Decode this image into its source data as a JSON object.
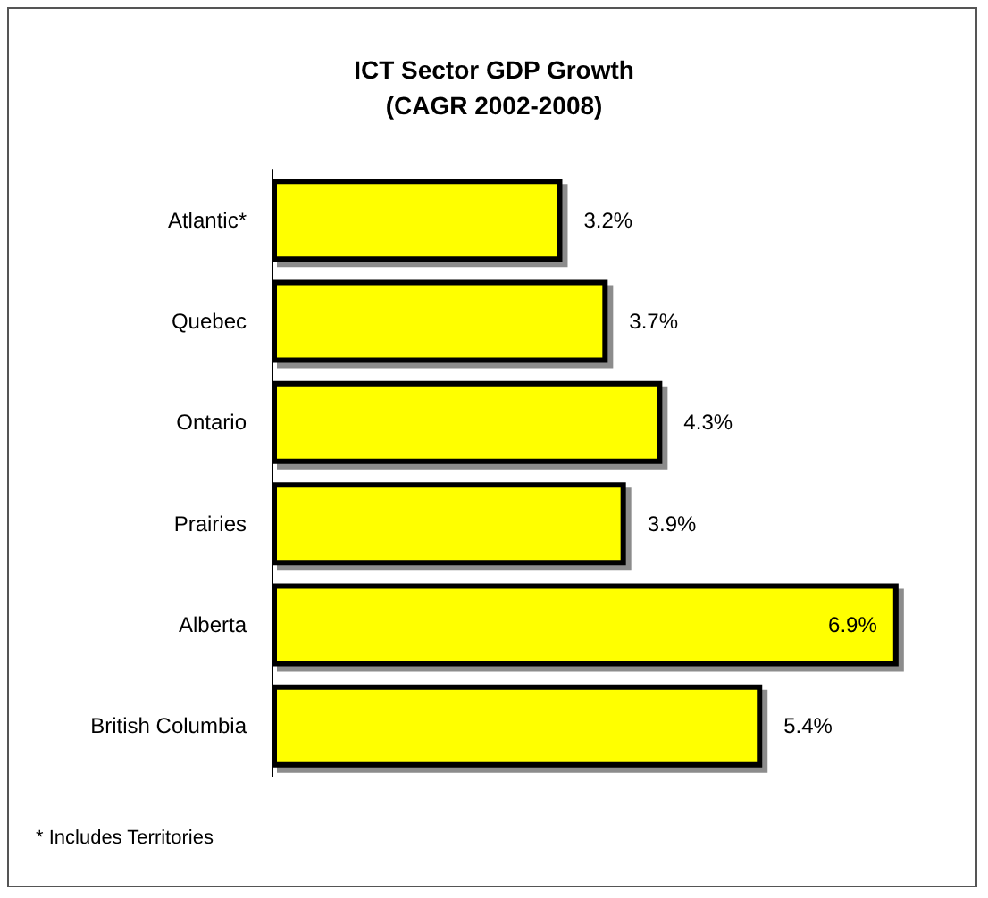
{
  "chart_data": {
    "type": "bar",
    "title": "ICT Sector GDP Growth\n(CAGR 2002-2008)",
    "orientation": "horizontal",
    "categories": [
      "Atlantic*",
      "Quebec",
      "Ontario",
      "Prairies",
      "Alberta",
      "British Columbia"
    ],
    "values": [
      3.2,
      3.7,
      4.3,
      3.9,
      6.9,
      5.4
    ],
    "color": "#ffff00",
    "value_labels": [
      "3.2%",
      "3.7%",
      "4.3%",
      "3.9%",
      "6.9%",
      "5.4%"
    ],
    "annotations": [
      "* Includes Territories"
    ]
  }
}
